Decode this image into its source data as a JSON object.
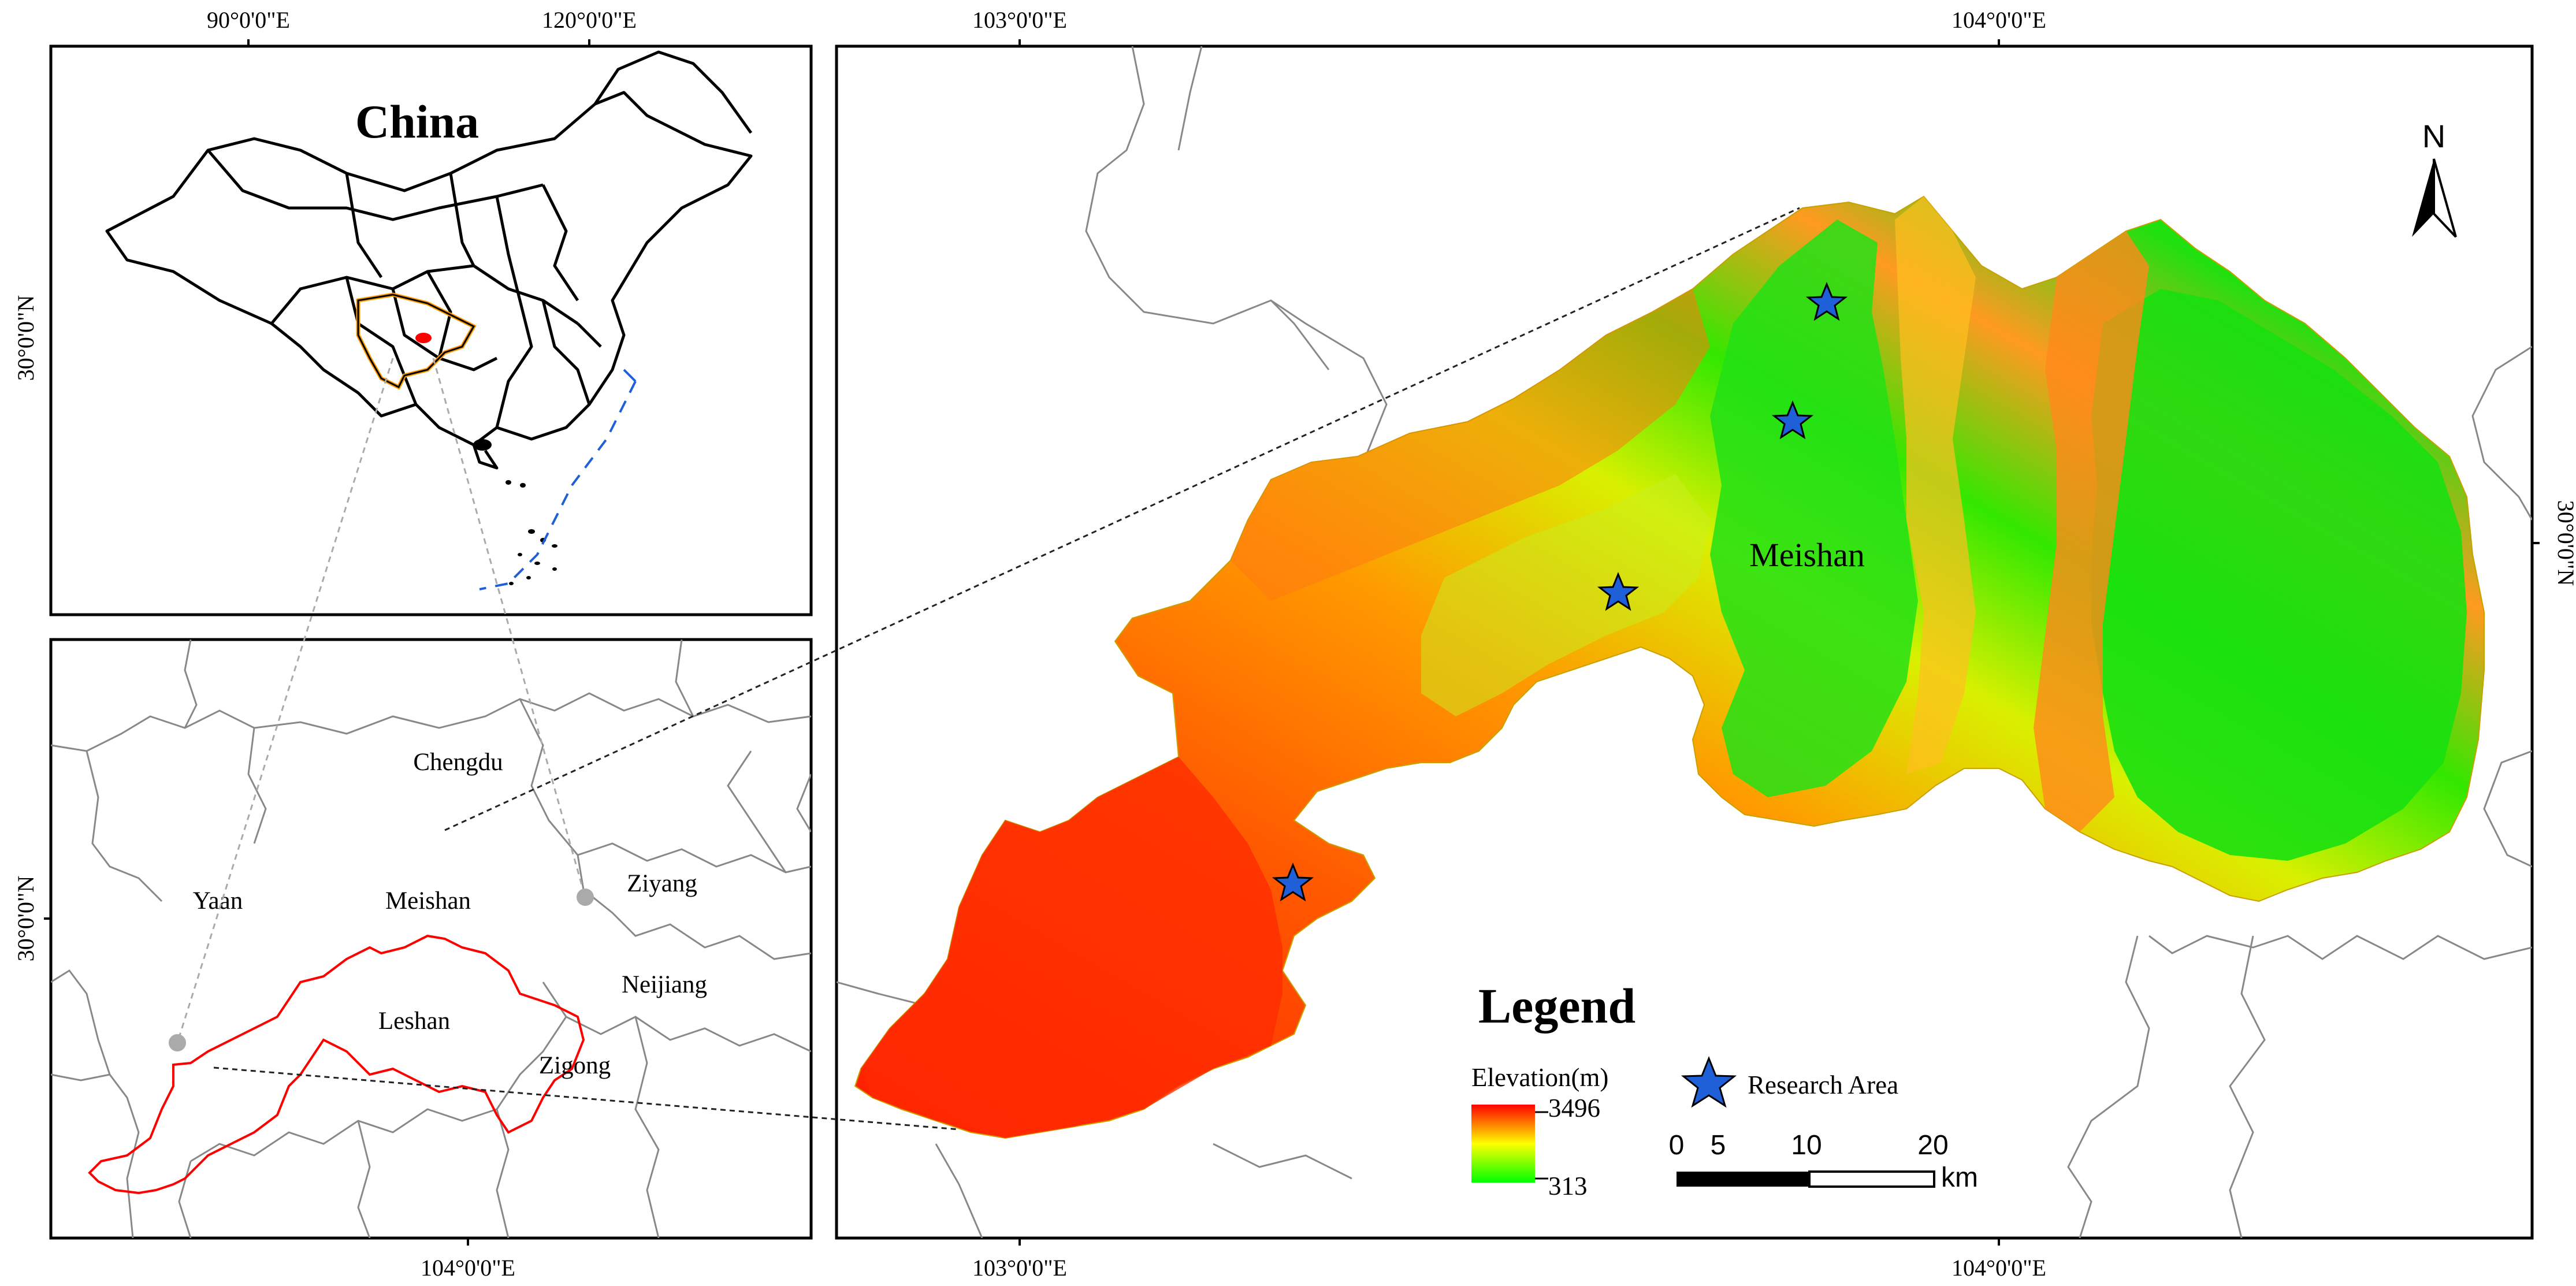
{
  "inset_china": {
    "title": "China",
    "top_ticks": [
      "90°0'0\"E",
      "120°0'0\"E"
    ],
    "left_tick": "30°0'0\"N"
  },
  "inset_region": {
    "bottom_tick": "104°0'0\"E",
    "left_tick": "30°0'0\"N",
    "cities": [
      "Chengdu",
      "Yaan",
      "Meishan",
      "Ziyang",
      "Neijiang",
      "Leshan",
      "Zigong"
    ]
  },
  "main_map": {
    "top_ticks": [
      "103°0'0\"E",
      "104°0'0\"E"
    ],
    "bottom_ticks": [
      "103°0'0\"E",
      "104°0'0\"E"
    ],
    "right_tick": "30°0'0\"N",
    "region_label": "Meishan",
    "north_label": "N"
  },
  "legend": {
    "title": "Legend",
    "elevation_label": "Elevation(m)",
    "elevation_max": "3496",
    "elevation_min": "313",
    "research_label": "Research Area",
    "scale_ticks": [
      "0",
      "5",
      "10",
      "20"
    ],
    "scale_unit": "km",
    "colors": {
      "high": "#ff0000",
      "mid": "#ffff00",
      "low": "#00ff00",
      "star": "#1f5fd8"
    }
  }
}
